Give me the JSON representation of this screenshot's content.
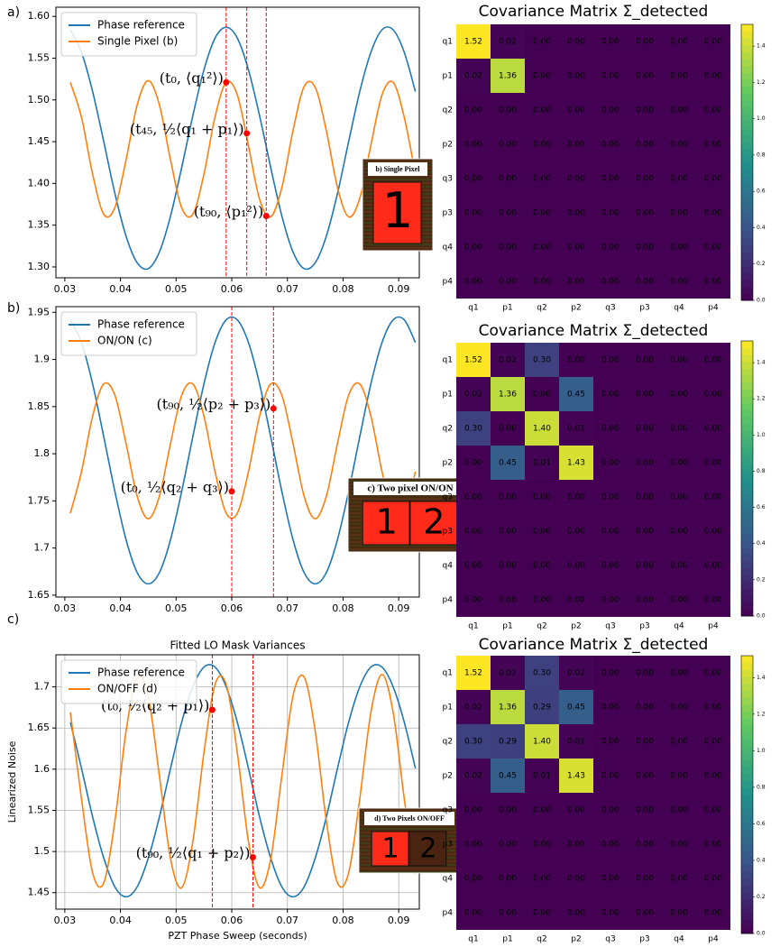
{
  "chart_data": [
    {
      "type": "line",
      "panel_label": "a)",
      "x": [
        0.031,
        0.033,
        0.035,
        0.037,
        0.039,
        0.041,
        0.043,
        0.045,
        0.047,
        0.049,
        0.051,
        0.053,
        0.055,
        0.057,
        0.059,
        0.061,
        0.063,
        0.065,
        0.067,
        0.069,
        0.071,
        0.073,
        0.075,
        0.077,
        0.079,
        0.081,
        0.083,
        0.085,
        0.087,
        0.089,
        0.091,
        0.093
      ],
      "series": [
        {
          "name": "Phase reference",
          "color": "#1f77b4",
          "values": [
            1.584,
            1.557,
            1.51,
            1.45,
            1.388,
            1.337,
            1.305,
            1.298,
            1.318,
            1.361,
            1.419,
            1.481,
            1.536,
            1.574,
            1.587,
            1.574,
            1.536,
            1.481,
            1.419,
            1.361,
            1.318,
            1.298,
            1.305,
            1.337,
            1.388,
            1.45,
            1.51,
            1.557,
            1.584,
            1.584,
            1.557,
            1.51
          ]
        },
        {
          "name": "Single Pixel (b)",
          "color": "#ff7f0e",
          "values": [
            1.521,
            1.479,
            1.411,
            1.363,
            1.371,
            1.428,
            1.494,
            1.523,
            1.494,
            1.428,
            1.371,
            1.363,
            1.411,
            1.48,
            1.521,
            1.506,
            1.445,
            1.381,
            1.36,
            1.395,
            1.463,
            1.516,
            1.515,
            1.463,
            1.395,
            1.36,
            1.382,
            1.446,
            1.506,
            1.521,
            1.479,
            1.411
          ]
        }
      ],
      "xlim": [
        0.0284,
        0.0937
      ],
      "ylim": [
        1.287,
        1.611
      ],
      "xticks": [
        0.03,
        0.04,
        0.05,
        0.06,
        0.07,
        0.08,
        0.09
      ],
      "yticks": [
        {
          "value": 1.3,
          "label": "1.30"
        },
        {
          "value": 1.35,
          "label": "1.35"
        },
        {
          "value": 1.4,
          "label": "1.40"
        },
        {
          "value": 1.45,
          "label": "1.45"
        },
        {
          "value": 1.5,
          "label": "1.50"
        },
        {
          "value": 1.55,
          "label": "1.55"
        },
        {
          "value": 1.6,
          "label": "1.60"
        }
      ],
      "grid": false,
      "legend": "upper left",
      "vlines": [
        0.059,
        0.0627,
        0.0662
      ],
      "vline_color": "#ff0000",
      "markers": {
        "x": [
          0.059,
          0.0627,
          0.0662
        ],
        "y": [
          1.521,
          1.46,
          1.361
        ],
        "labels": [
          "(t₀, ⟨q₁²⟩)",
          "(t₄₅, ½⟨q₁ + p₁⟩)",
          "(t₉₀, ⟨p₁²⟩)"
        ]
      },
      "marker_color": "#ff0000",
      "inset": {
        "title": "b) Single Pixel",
        "pixels": [
          "1"
        ],
        "pixel_colors": [
          "#ff2a1a"
        ]
      }
    },
    {
      "type": "heatmap",
      "title": "Covariance Matrix Σ_detected",
      "x_categories": [
        "q1",
        "p1",
        "q2",
        "p2",
        "q3",
        "p3",
        "q4",
        "p4"
      ],
      "y_categories": [
        "q1",
        "p1",
        "q2",
        "p2",
        "q3",
        "p3",
        "q4",
        "p4"
      ],
      "values": [
        [
          1.52,
          0.02,
          0,
          0,
          0,
          0,
          0,
          0
        ],
        [
          0.02,
          1.36,
          0,
          0,
          0,
          0,
          0,
          0
        ],
        [
          0,
          0,
          0,
          0,
          0,
          0,
          0,
          0
        ],
        [
          0,
          0,
          0,
          0,
          0,
          0,
          0,
          0
        ],
        [
          0,
          0,
          0,
          0,
          0,
          0,
          0,
          0
        ],
        [
          0,
          0,
          0,
          0,
          0,
          0,
          0,
          0
        ],
        [
          0,
          0,
          0,
          0,
          0,
          0,
          0,
          0
        ],
        [
          0,
          0,
          0,
          0,
          0,
          0,
          0,
          0
        ]
      ],
      "value_labels": [
        [
          "1.52",
          "0.02",
          "0.00",
          "0.00",
          "0.00",
          "0.00",
          "0.00",
          "0.00"
        ],
        [
          "0.02",
          "1.36",
          "0.00",
          "0.00",
          "0.00",
          "0.00",
          "0.00",
          "0.00"
        ],
        [
          "0.00",
          "0.00",
          "0.00",
          "0.00",
          "0.00",
          "0.00",
          "0.00",
          "0.00"
        ],
        [
          "0.00",
          "0.00",
          "0.00",
          "0.00",
          "0.00",
          "0.00",
          "0.00",
          "0.00"
        ],
        [
          "0.00",
          "0.00",
          "0.00",
          "0.00",
          "0.00",
          "0.00",
          "0.00",
          "0.00"
        ],
        [
          "0.00",
          "0.00",
          "0.00",
          "0.00",
          "0.00",
          "0.00",
          "0.00",
          "0.00"
        ],
        [
          "0.00",
          "0.00",
          "0.00",
          "0.00",
          "0.00",
          "0.00",
          "0.00",
          "0.00"
        ],
        [
          "0.00",
          "0.00",
          "0.00",
          "0.00",
          "0.00",
          "0.00",
          "0.00",
          "0.00"
        ]
      ],
      "colormap": "viridis",
      "clim": [
        0,
        1.52
      ],
      "colorbar_ticks": [
        {
          "value": 0,
          "label": "0.0"
        },
        {
          "value": 0.2,
          "label": "0.2"
        },
        {
          "value": 0.4,
          "label": "0.4"
        },
        {
          "value": 0.6,
          "label": "0.6"
        },
        {
          "value": 0.8,
          "label": "0.8"
        },
        {
          "value": 1.0,
          "label": "1.0"
        },
        {
          "value": 1.2,
          "label": "1.2"
        },
        {
          "value": 1.4,
          "label": "1.4"
        }
      ]
    },
    {
      "type": "line",
      "panel_label": "b)",
      "x": [
        0.031,
        0.033,
        0.035,
        0.037,
        0.039,
        0.041,
        0.043,
        0.045,
        0.047,
        0.049,
        0.051,
        0.053,
        0.055,
        0.057,
        0.059,
        0.061,
        0.063,
        0.065,
        0.067,
        0.069,
        0.071,
        0.073,
        0.075,
        0.077,
        0.079,
        0.081,
        0.083,
        0.085,
        0.087,
        0.089,
        0.091,
        0.093
      ],
      "series": [
        {
          "name": "Phase reference",
          "color": "#1f77b4",
          "values": [
            1.942,
            1.918,
            1.874,
            1.818,
            1.76,
            1.709,
            1.674,
            1.662,
            1.674,
            1.709,
            1.76,
            1.818,
            1.874,
            1.918,
            1.942,
            1.942,
            1.918,
            1.874,
            1.818,
            1.76,
            1.709,
            1.674,
            1.662,
            1.674,
            1.709,
            1.76,
            1.818,
            1.874,
            1.918,
            1.942,
            1.942,
            1.918
          ]
        },
        {
          "name": "ON/ON (c)",
          "color": "#ff7f0e",
          "values": [
            1.737,
            1.781,
            1.84,
            1.874,
            1.862,
            1.811,
            1.755,
            1.731,
            1.755,
            1.811,
            1.862,
            1.874,
            1.84,
            1.781,
            1.737,
            1.737,
            1.781,
            1.84,
            1.874,
            1.862,
            1.811,
            1.755,
            1.731,
            1.755,
            1.811,
            1.862,
            1.874,
            1.84,
            1.781,
            1.737,
            1.737,
            1.781
          ]
        }
      ],
      "xlim": [
        0.0284,
        0.0937
      ],
      "ylim": [
        1.648,
        1.956
      ],
      "xticks": [
        0.03,
        0.04,
        0.05,
        0.06,
        0.07,
        0.08,
        0.09
      ],
      "yticks": [
        1.65,
        1.7,
        1.75,
        1.8,
        1.85,
        1.9,
        1.95
      ],
      "grid": false,
      "legend": "upper left",
      "vlines": [
        0.06,
        0.0675
      ],
      "vline_color": "#ff0000",
      "markers": {
        "x": [
          0.06,
          0.0675
        ],
        "y": [
          1.76,
          1.848
        ],
        "labels": [
          "(t₀, ½⟨q₂ + q₃⟩)",
          "(t₉₀, ½⟨p₂ + p₃⟩)"
        ]
      },
      "marker_color": "#ff0000",
      "inset": {
        "title": "c) Two pixel ON/ON",
        "pixels": [
          "1",
          "2"
        ],
        "pixel_colors": [
          "#ff2a1a",
          "#ff2a1a"
        ]
      }
    },
    {
      "type": "heatmap",
      "title": "Covariance Matrix Σ_detected",
      "x_categories": [
        "q1",
        "p1",
        "q2",
        "p2",
        "q3",
        "p3",
        "q4",
        "p4"
      ],
      "y_categories": [
        "q1",
        "p1",
        "q2",
        "p2",
        "q3",
        "p3",
        "q4",
        "p4"
      ],
      "values": [
        [
          1.52,
          0.02,
          0.3,
          0,
          0,
          0,
          0,
          0
        ],
        [
          0.02,
          1.36,
          0,
          0.45,
          0,
          0,
          0,
          0
        ],
        [
          0.3,
          0,
          1.4,
          0.01,
          0,
          0,
          0,
          0
        ],
        [
          0,
          0.45,
          0.01,
          1.43,
          0,
          0,
          0,
          0
        ],
        [
          0,
          0,
          0,
          0,
          0,
          0,
          0,
          0
        ],
        [
          0,
          0,
          0,
          0,
          0,
          0,
          0,
          0
        ],
        [
          0,
          0,
          0,
          0,
          0,
          0,
          0,
          0
        ],
        [
          0,
          0,
          0,
          0,
          0,
          0,
          0,
          0
        ]
      ],
      "value_labels": [
        [
          "1.52",
          "0.02",
          "0.30",
          "0.00",
          "0.00",
          "0.00",
          "0.00",
          "0.00"
        ],
        [
          "0.02",
          "1.36",
          "0.00",
          "0.45",
          "0.00",
          "0.00",
          "0.00",
          "0.00"
        ],
        [
          "0.30",
          "0.00",
          "1.40",
          "0.01",
          "0.00",
          "0.00",
          "0.00",
          "0.00"
        ],
        [
          "0.00",
          "0.45",
          "0.01",
          "1.43",
          "0.00",
          "0.00",
          "0.00",
          "0.00"
        ],
        [
          "0.00",
          "0.00",
          "0.00",
          "0.00",
          "0.00",
          "0.00",
          "0.00",
          "0.00"
        ],
        [
          "0.00",
          "0.00",
          "0.00",
          "0.00",
          "0.00",
          "0.00",
          "0.00",
          "0.00"
        ],
        [
          "0.00",
          "0.00",
          "0.00",
          "0.00",
          "0.00",
          "0.00",
          "0.00",
          "0.00"
        ],
        [
          "0.00",
          "0.00",
          "0.00",
          "0.00",
          "0.00",
          "0.00",
          "0.00",
          "0.00"
        ]
      ],
      "colormap": "viridis",
      "clim": [
        0,
        1.52
      ],
      "colorbar_ticks": [
        {
          "value": 0,
          "label": "0.0"
        },
        {
          "value": 0.2,
          "label": "0.2"
        },
        {
          "value": 0.4,
          "label": "0.4"
        },
        {
          "value": 0.6,
          "label": "0.6"
        },
        {
          "value": 0.8,
          "label": "0.8"
        },
        {
          "value": 1.0,
          "label": "1.0"
        },
        {
          "value": 1.2,
          "label": "1.2"
        },
        {
          "value": 1.4,
          "label": "1.4"
        }
      ]
    },
    {
      "type": "line",
      "panel_label": "c)",
      "title": "Fitted LO Mask Variances",
      "xlabel": "PZT Phase Sweep (seconds)",
      "ylabel": "Linearized Noise",
      "x": [
        0.031,
        0.033,
        0.035,
        0.037,
        0.039,
        0.041,
        0.043,
        0.045,
        0.047,
        0.049,
        0.051,
        0.053,
        0.055,
        0.057,
        0.059,
        0.061,
        0.063,
        0.065,
        0.067,
        0.069,
        0.071,
        0.073,
        0.075,
        0.077,
        0.079,
        0.081,
        0.083,
        0.085,
        0.087,
        0.089,
        0.091,
        0.093
      ],
      "series": [
        {
          "name": "Phase reference",
          "color": "#1f77b4",
          "values": [
            1.657,
            1.601,
            1.542,
            1.492,
            1.457,
            1.445,
            1.457,
            1.492,
            1.542,
            1.601,
            1.657,
            1.7,
            1.724,
            1.724,
            1.7,
            1.657,
            1.601,
            1.542,
            1.492,
            1.457,
            1.445,
            1.457,
            1.492,
            1.542,
            1.601,
            1.657,
            1.7,
            1.724,
            1.724,
            1.7,
            1.657,
            1.601
          ]
        },
        {
          "name": "ON/OFF (d)",
          "color": "#ff7f0e",
          "values": [
            1.669,
            1.564,
            1.474,
            1.462,
            1.537,
            1.646,
            1.712,
            1.688,
            1.592,
            1.491,
            1.456,
            1.512,
            1.62,
            1.703,
            1.703,
            1.62,
            1.512,
            1.456,
            1.491,
            1.592,
            1.689,
            1.712,
            1.646,
            1.537,
            1.462,
            1.474,
            1.564,
            1.669,
            1.715,
            1.669,
            1.564,
            1.473
          ]
        }
      ],
      "xlim": [
        0.0284,
        0.0937
      ],
      "ylim": [
        1.43,
        1.739
      ],
      "xticks": [
        0.03,
        0.04,
        0.05,
        0.06,
        0.07,
        0.08,
        0.09
      ],
      "yticks": [
        1.45,
        1.5,
        1.55,
        1.6,
        1.65,
        1.7
      ],
      "grid": true,
      "legend": "upper left",
      "vlines": [
        0.0565,
        0.0638
      ],
      "vline_color": "#ff0000",
      "markers": {
        "x": [
          0.0565,
          0.0638
        ],
        "y": [
          1.672,
          1.493
        ],
        "labels": [
          "(t₀, ½⟨q₂ + p₁⟩)",
          "(t₉₀, ½⟨q₁ + p₂⟩)"
        ]
      },
      "marker_color": "#ff0000",
      "inset": {
        "title": "d) Two Pixels ON/OFF",
        "pixels": [
          "1",
          "2"
        ],
        "pixel_colors": [
          "#ff2a1a",
          "#4a2410"
        ]
      }
    },
    {
      "type": "heatmap",
      "title": "Covariance Matrix Σ_detected",
      "x_categories": [
        "q1",
        "p1",
        "q2",
        "p2",
        "q3",
        "p3",
        "q4",
        "p4"
      ],
      "y_categories": [
        "q1",
        "p1",
        "q2",
        "p2",
        "q3",
        "p3",
        "q4",
        "p4"
      ],
      "values": [
        [
          1.52,
          0.02,
          0.3,
          0.02,
          0,
          0,
          0,
          0
        ],
        [
          0.02,
          1.36,
          0.29,
          0.45,
          0,
          0,
          0,
          0
        ],
        [
          0.3,
          0.29,
          1.4,
          0.01,
          0,
          0,
          0,
          0
        ],
        [
          0.02,
          0.45,
          0.01,
          1.43,
          0,
          0,
          0,
          0
        ],
        [
          0,
          0,
          0,
          0,
          0,
          0,
          0,
          0
        ],
        [
          0,
          0,
          0,
          0,
          0,
          0,
          0,
          0
        ],
        [
          0,
          0,
          0,
          0,
          0,
          0,
          0,
          0
        ],
        [
          0,
          0,
          0,
          0,
          0,
          0,
          0,
          0
        ]
      ],
      "value_labels": [
        [
          "1.52",
          "0.02",
          "0.30",
          "0.02",
          "0.00",
          "0.00",
          "0.00",
          "0.00"
        ],
        [
          "0.02",
          "1.36",
          "0.29",
          "0.45",
          "0.00",
          "0.00",
          "0.00",
          "0.00"
        ],
        [
          "0.30",
          "0.29",
          "1.40",
          "0.01",
          "0.00",
          "0.00",
          "0.00",
          "0.00"
        ],
        [
          "0.02",
          "0.45",
          "0.01",
          "1.43",
          "0.00",
          "0.00",
          "0.00",
          "0.00"
        ],
        [
          "0.00",
          "0.00",
          "0.00",
          "0.00",
          "0.00",
          "0.00",
          "0.00",
          "0.00"
        ],
        [
          "0.00",
          "0.00",
          "0.00",
          "0.00",
          "0.00",
          "0.00",
          "0.00",
          "0.00"
        ],
        [
          "0.00",
          "0.00",
          "0.00",
          "0.00",
          "0.00",
          "0.00",
          "0.00",
          "0.00"
        ],
        [
          "0.00",
          "0.00",
          "0.00",
          "0.00",
          "0.00",
          "0.00",
          "0.00",
          "0.00"
        ]
      ],
      "colormap": "viridis",
      "clim": [
        0,
        1.52
      ],
      "colorbar_ticks": [
        {
          "value": 0,
          "label": "0.0"
        },
        {
          "value": 0.2,
          "label": "0.2"
        },
        {
          "value": 0.4,
          "label": "0.4"
        },
        {
          "value": 0.6,
          "label": "0.6"
        },
        {
          "value": 0.8,
          "label": "0.8"
        },
        {
          "value": 1.0,
          "label": "1.0"
        },
        {
          "value": 1.2,
          "label": "1.2"
        },
        {
          "value": 1.4,
          "label": "1.4"
        }
      ]
    }
  ]
}
